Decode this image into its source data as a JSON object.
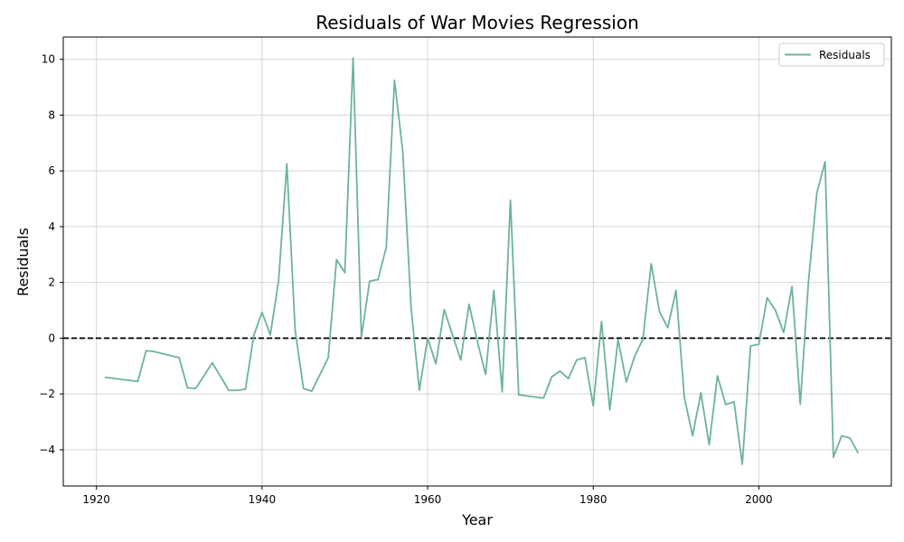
{
  "chart_data": {
    "type": "line",
    "title": "Residuals of War Movies Regression",
    "xlabel": "Year",
    "ylabel": "Residuals",
    "xlim": [
      1916,
      2016
    ],
    "ylim": [
      -5.3,
      10.8
    ],
    "xticks": [
      1920,
      1940,
      1960,
      1980,
      2000
    ],
    "yticks": [
      -4,
      -2,
      0,
      2,
      4,
      6,
      8,
      10
    ],
    "grid": true,
    "reference_line": {
      "y": 0,
      "style": "dashed",
      "color": "#000000"
    },
    "legend": {
      "position": "top-right",
      "entries": [
        "Residuals"
      ]
    },
    "series": [
      {
        "name": "Residuals",
        "color": "#6db39a",
        "x": [
          1921,
          1925,
          1926,
          1927,
          1930,
          1931,
          1932,
          1934,
          1936,
          1937,
          1938,
          1939,
          1940,
          1941,
          1942,
          1943,
          1944,
          1945,
          1946,
          1948,
          1949,
          1950,
          1951,
          1952,
          1953,
          1954,
          1955,
          1956,
          1957,
          1958,
          1959,
          1960,
          1961,
          1962,
          1963,
          1964,
          1965,
          1966,
          1967,
          1968,
          1969,
          1970,
          1971,
          1974,
          1975,
          1976,
          1977,
          1978,
          1979,
          1980,
          1981,
          1982,
          1983,
          1984,
          1985,
          1986,
          1987,
          1988,
          1989,
          1990,
          1991,
          1992,
          1993,
          1994,
          1995,
          1996,
          1997,
          1998,
          1999,
          2000,
          2001,
          2002,
          2003,
          2004,
          2005,
          2006,
          2007,
          2008,
          2009,
          2010,
          2011,
          2012
        ],
        "values": [
          -1.4,
          -1.55,
          -0.45,
          -0.48,
          -0.7,
          -1.78,
          -1.8,
          -0.88,
          -1.87,
          -1.87,
          -1.83,
          0.1,
          0.93,
          0.12,
          2.05,
          6.25,
          0.3,
          -1.8,
          -1.9,
          -0.7,
          2.82,
          2.35,
          10.05,
          0.05,
          2.05,
          2.1,
          3.25,
          9.25,
          6.7,
          1.1,
          -1.87,
          0.0,
          -0.92,
          1.03,
          0.12,
          -0.78,
          1.22,
          -0.1,
          -1.3,
          1.72,
          -1.92,
          4.95,
          -2.03,
          -2.15,
          -1.38,
          -1.18,
          -1.45,
          -0.78,
          -0.7,
          -2.43,
          0.6,
          -2.57,
          -0.05,
          -1.57,
          -0.65,
          -0.03,
          2.67,
          0.95,
          0.38,
          1.72,
          -2.12,
          -3.5,
          -1.95,
          -3.82,
          -1.35,
          -2.38,
          -2.28,
          -4.52,
          -0.28,
          -0.22,
          1.45,
          1.0,
          0.2,
          1.85,
          -2.37,
          2.05,
          5.2,
          6.33,
          -4.27,
          -3.5,
          -3.58,
          -4.12
        ]
      }
    ]
  }
}
